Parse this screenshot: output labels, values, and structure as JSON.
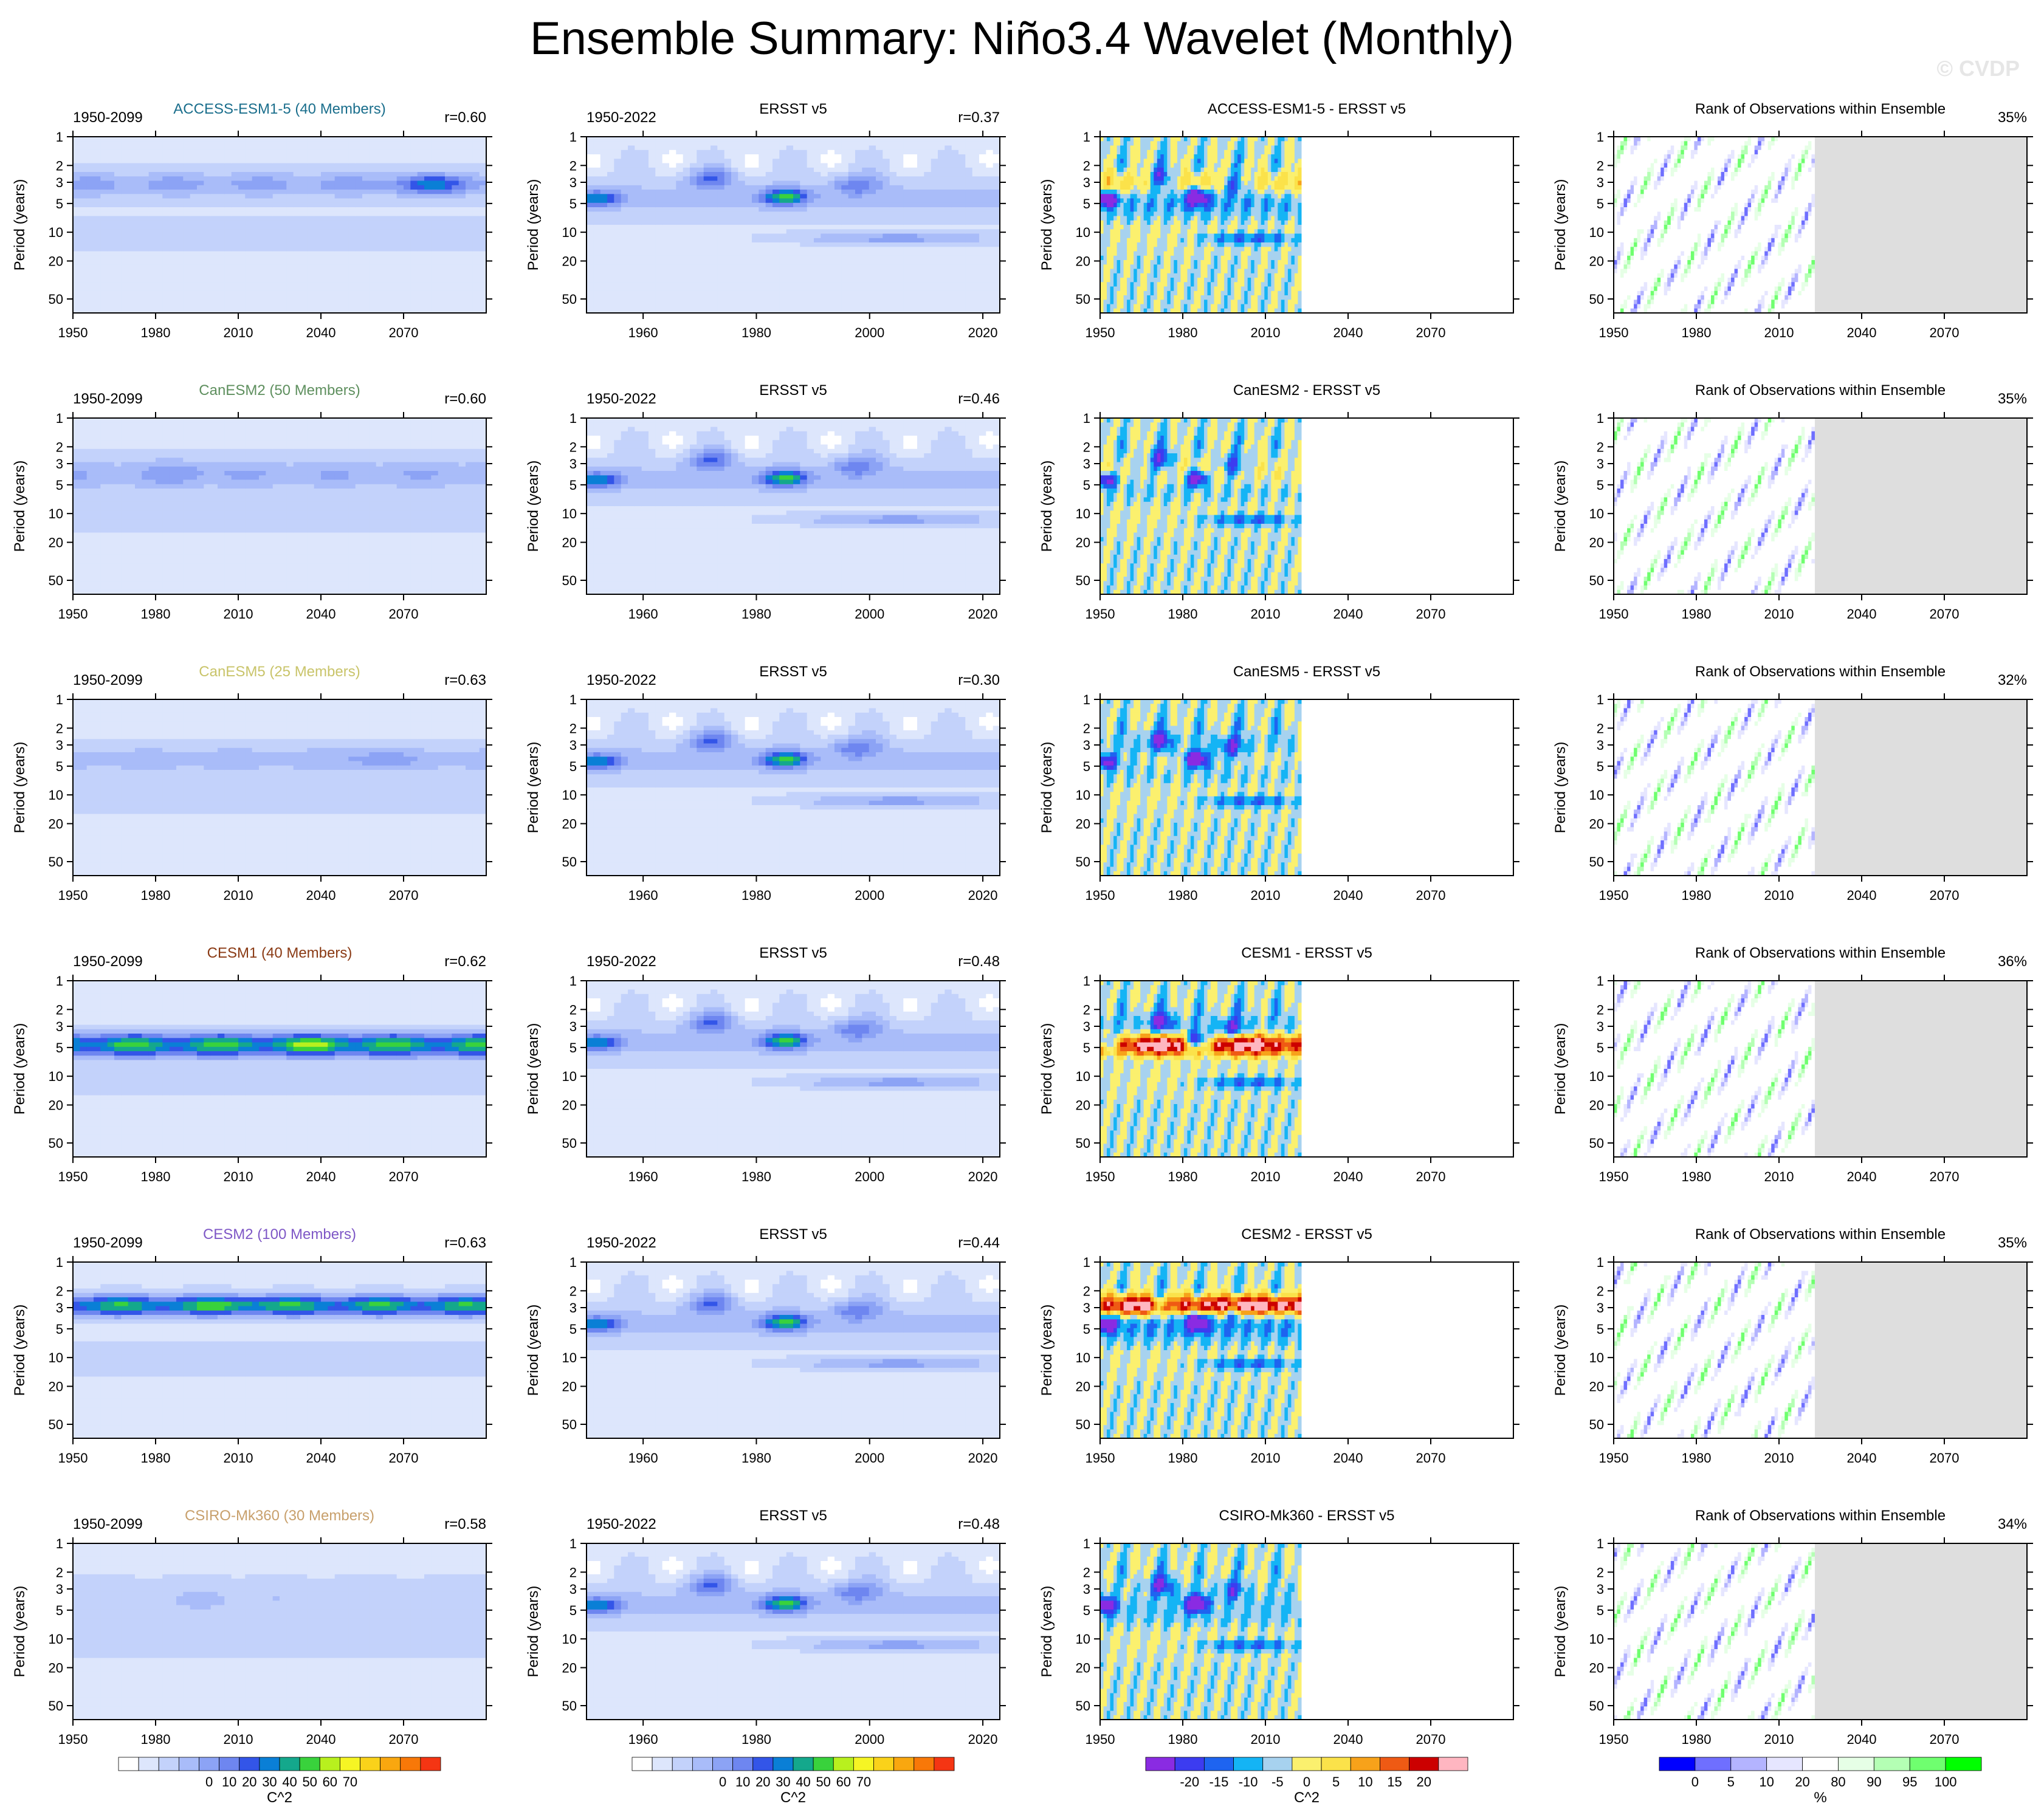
{
  "title": "Ensemble Summary: Niño3.4 Wavelet (Monthly)",
  "watermark": "© CVDP",
  "chart_data": {
    "type": "heatmap",
    "ylabel": "Period (years)",
    "yticks": [
      1,
      2,
      3,
      5,
      10,
      20,
      50
    ],
    "ylim": [
      1,
      70
    ],
    "columns": [
      {
        "kind": "model",
        "xlim": [
          1950,
          2100
        ],
        "xticks": [
          1950,
          1980,
          2010,
          2040,
          2070
        ]
      },
      {
        "kind": "obs",
        "xlim": [
          1950,
          2023
        ],
        "xticks": [
          1960,
          1980,
          2000,
          2020
        ]
      },
      {
        "kind": "diff",
        "xlim": [
          1950,
          2100
        ],
        "xticks": [
          1950,
          1980,
          2010,
          2040,
          2070
        ],
        "data_end": 2023
      },
      {
        "kind": "rank",
        "xlim": [
          1950,
          2100
        ],
        "xticks": [
          1950,
          1980,
          2010,
          2040,
          2070
        ],
        "data_end": 2023
      }
    ],
    "rows": [
      {
        "model": "ACCESS-ESM1-5 (40 Members)",
        "model_color": "#1a6e8c",
        "model_period": "1950-2099",
        "model_r": "r=0.60",
        "obs_title": "ERSST v5",
        "obs_period": "1950-2022",
        "obs_r": "r=0.37",
        "diff_title": "ACCESS-ESM1-5 - ERSST v5",
        "rank_title": "Rank of Observations within Ensemble",
        "rank_pct": "35%"
      },
      {
        "model": "CanESM2 (50 Members)",
        "model_color": "#5e8f5e",
        "model_period": "1950-2099",
        "model_r": "r=0.60",
        "obs_title": "ERSST v5",
        "obs_period": "1950-2022",
        "obs_r": "r=0.46",
        "diff_title": "CanESM2 - ERSST v5",
        "rank_title": "Rank of Observations within Ensemble",
        "rank_pct": "35%"
      },
      {
        "model": "CanESM5 (25 Members)",
        "model_color": "#c9c46a",
        "model_period": "1950-2099",
        "model_r": "r=0.63",
        "obs_title": "ERSST v5",
        "obs_period": "1950-2022",
        "obs_r": "r=0.30",
        "diff_title": "CanESM5 - ERSST v5",
        "rank_title": "Rank of Observations within Ensemble",
        "rank_pct": "32%"
      },
      {
        "model": "CESM1 (40 Members)",
        "model_color": "#8a3a14",
        "model_period": "1950-2099",
        "model_r": "r=0.62",
        "obs_title": "ERSST v5",
        "obs_period": "1950-2022",
        "obs_r": "r=0.48",
        "diff_title": "CESM1 - ERSST v5",
        "rank_title": "Rank of Observations within Ensemble",
        "rank_pct": "36%"
      },
      {
        "model": "CESM2 (100 Members)",
        "model_color": "#7e57c6",
        "model_period": "1950-2099",
        "model_r": "r=0.63",
        "obs_title": "ERSST v5",
        "obs_period": "1950-2022",
        "obs_r": "r=0.44",
        "diff_title": "CESM2 - ERSST v5",
        "rank_title": "Rank of Observations within Ensemble",
        "rank_pct": "35%"
      },
      {
        "model": "CSIRO-Mk360 (30 Members)",
        "model_color": "#c8a06c",
        "model_period": "1950-2099",
        "model_r": "r=0.58",
        "obs_title": "ERSST v5",
        "obs_period": "1950-2022",
        "obs_r": "r=0.48",
        "diff_title": "CSIRO-Mk360 - ERSST v5",
        "rank_title": "Rank of Observations within Ensemble",
        "rank_pct": "34%"
      }
    ],
    "colorbars": [
      {
        "unit": "C^2",
        "labels": [
          "0",
          "10",
          "20",
          "30",
          "40",
          "50",
          "60",
          "70"
        ],
        "colors": [
          "#ffffff",
          "#dde6fc",
          "#c3d2fb",
          "#a9bcf9",
          "#8ca3f5",
          "#6e86f0",
          "#3355e8",
          "#0a7fd6",
          "#14a88c",
          "#39d23c",
          "#b8f01e",
          "#f6f524",
          "#fad21a",
          "#f9a70f",
          "#f87808",
          "#f53513"
        ]
      },
      {
        "unit": "C^2",
        "labels": [
          "0",
          "10",
          "20",
          "30",
          "40",
          "50",
          "60",
          "70"
        ],
        "colors": [
          "#ffffff",
          "#dde6fc",
          "#c3d2fb",
          "#a9bcf9",
          "#8ca3f5",
          "#6e86f0",
          "#3355e8",
          "#0a7fd6",
          "#14a88c",
          "#39d23c",
          "#b8f01e",
          "#f6f524",
          "#fad21a",
          "#f9a70f",
          "#f87808",
          "#f53513"
        ]
      },
      {
        "unit": "C^2",
        "labels": [
          "-20",
          "-15",
          "-10",
          "-5",
          "0",
          "5",
          "10",
          "15",
          "20"
        ],
        "colors": [
          "#8a2be2",
          "#3c3cf0",
          "#1e64f0",
          "#14b4f5",
          "#a7d2ef",
          "#fbf06e",
          "#fbe24a",
          "#f7a21a",
          "#ef5a14",
          "#cc0000",
          "#ffb6c1"
        ]
      },
      {
        "unit": "%",
        "labels": [
          "0",
          "5",
          "10",
          "20",
          "80",
          "90",
          "95",
          "100"
        ],
        "colors": [
          "#0000ff",
          "#6f6fff",
          "#b4b4ff",
          "#e6e6ff",
          "#ffffff",
          "#e6ffe6",
          "#b4ffb4",
          "#6fff6f",
          "#00ff00"
        ]
      }
    ]
  }
}
